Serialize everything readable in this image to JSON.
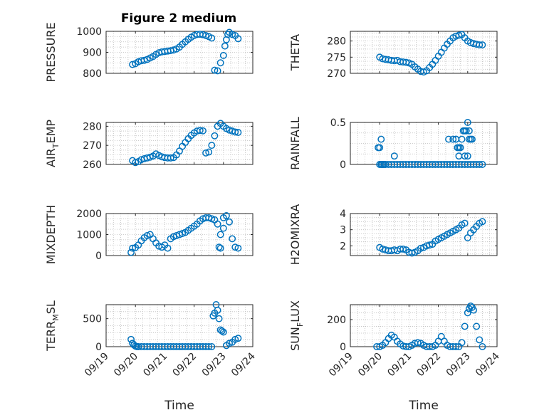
{
  "figure": {
    "title": "Figure 2 medium"
  },
  "colors": {
    "marker": "#0072BD",
    "axis": "#262626",
    "grid": "#bdbdbd"
  },
  "chart_data": [
    {
      "type": "scatter",
      "id": "pressure",
      "ylabel": "PRESSURE",
      "ylabel_sub": null,
      "ylim": [
        800,
        1000
      ],
      "yticks": [
        800,
        900,
        1000
      ],
      "yticklabels": [
        "800",
        "900",
        "1000"
      ],
      "xlim": [
        0,
        5
      ],
      "xticks": [
        0,
        1,
        2,
        3,
        4,
        5
      ],
      "xticklabels": [
        "09/19",
        "09/20",
        "09/21",
        "09/22",
        "09/23",
        "09/24"
      ],
      "xlabel": null,
      "x": [
        0.9,
        1.0,
        1.1,
        1.2,
        1.3,
        1.4,
        1.5,
        1.6,
        1.7,
        1.8,
        1.9,
        2.0,
        2.1,
        2.2,
        2.3,
        2.4,
        2.5,
        2.6,
        2.7,
        2.8,
        2.9,
        3.0,
        3.1,
        3.2,
        3.3,
        3.4,
        3.5,
        3.6,
        3.7,
        3.8,
        3.9,
        4.0,
        4.05,
        4.1,
        4.15,
        4.2,
        4.3,
        4.4,
        4.5
      ],
      "y": [
        842,
        846,
        855,
        860,
        862,
        866,
        873,
        880,
        890,
        898,
        902,
        904,
        906,
        908,
        911,
        916,
        925,
        938,
        950,
        962,
        972,
        980,
        985,
        986,
        984,
        980,
        975,
        968,
        815,
        812,
        850,
        885,
        930,
        960,
        985,
        995,
        985,
        980,
        965
      ]
    },
    {
      "type": "scatter",
      "id": "theta",
      "ylabel": "THETA",
      "ylabel_sub": null,
      "ylim": [
        270,
        283
      ],
      "yticks": [
        270,
        275,
        280
      ],
      "yticklabels": [
        "270",
        "275",
        "280"
      ],
      "xlim": [
        0,
        5
      ],
      "xticks": [
        0,
        1,
        2,
        3,
        4,
        5
      ],
      "xticklabels": [
        "09/19",
        "09/20",
        "09/21",
        "09/22",
        "09/23",
        "09/24"
      ],
      "xlabel": null,
      "x": [
        1.0,
        1.1,
        1.2,
        1.3,
        1.4,
        1.5,
        1.6,
        1.7,
        1.8,
        1.9,
        2.0,
        2.1,
        2.2,
        2.3,
        2.4,
        2.5,
        2.6,
        2.7,
        2.8,
        2.9,
        3.0,
        3.1,
        3.2,
        3.3,
        3.4,
        3.5,
        3.6,
        3.7,
        3.8,
        3.9,
        4.0,
        4.1,
        4.2,
        4.3,
        4.4,
        4.5
      ],
      "y": [
        275,
        274.5,
        274.3,
        274.2,
        274,
        273.9,
        274,
        273.6,
        273.5,
        273.4,
        273.2,
        272.8,
        272,
        271.3,
        270.6,
        270.4,
        270.8,
        271.8,
        272.8,
        274,
        275.3,
        276.5,
        277.8,
        279,
        280,
        281,
        281.5,
        281.8,
        282,
        281,
        280,
        279.5,
        279.2,
        279,
        278.8,
        278.8
      ]
    },
    {
      "type": "scatter",
      "id": "air_temp",
      "ylabel": "AIR",
      "ylabel_sub": "T",
      "ylabel_suffix": "EMP",
      "ylim": [
        260,
        282
      ],
      "yticks": [
        260,
        270,
        280
      ],
      "yticklabels": [
        "260",
        "270",
        "280"
      ],
      "xlim": [
        0,
        5
      ],
      "xticks": [
        0,
        1,
        2,
        3,
        4,
        5
      ],
      "xticklabels": [
        "09/19",
        "09/20",
        "09/21",
        "09/22",
        "09/23",
        "09/24"
      ],
      "xlabel": null,
      "x": [
        0.9,
        1.0,
        1.1,
        1.2,
        1.3,
        1.4,
        1.5,
        1.6,
        1.7,
        1.8,
        1.9,
        2.0,
        2.1,
        2.2,
        2.3,
        2.4,
        2.5,
        2.6,
        2.7,
        2.8,
        2.9,
        3.0,
        3.1,
        3.2,
        3.3,
        3.4,
        3.5,
        3.6,
        3.7,
        3.8,
        3.9,
        4.0,
        4.1,
        4.2,
        4.3,
        4.4,
        4.5
      ],
      "y": [
        262,
        261,
        261.5,
        262.5,
        263,
        263.4,
        263.8,
        264.4,
        265.5,
        264.7,
        264,
        263.6,
        263.4,
        263.4,
        263.6,
        265,
        267,
        269.5,
        271.5,
        273.5,
        275.2,
        276.5,
        277.5,
        277.8,
        277.6,
        266,
        266.5,
        270,
        275,
        280,
        281.5,
        280,
        278.8,
        278,
        277.5,
        277,
        276.8
      ]
    },
    {
      "type": "scatter",
      "id": "rainfall",
      "ylabel": "RAINFALL",
      "ylabel_sub": null,
      "ylim": [
        0,
        0.5
      ],
      "yticks": [
        0,
        0.5
      ],
      "yticklabels": [
        "0",
        "0.5"
      ],
      "xlim": [
        0,
        5
      ],
      "xticks": [
        0,
        1,
        2,
        3,
        4,
        5
      ],
      "xticklabels": [
        "09/19",
        "09/20",
        "09/21",
        "09/22",
        "09/23",
        "09/24"
      ],
      "xlabel": null,
      "x": [
        0.95,
        1.0,
        1.05,
        1.1,
        1.15,
        1.2,
        1.3,
        1.4,
        1.5,
        1.6,
        1.7,
        1.8,
        1.9,
        2.0,
        2.1,
        2.2,
        2.3,
        2.4,
        2.5,
        2.6,
        2.7,
        2.8,
        2.9,
        3.0,
        3.1,
        3.2,
        3.3,
        3.4,
        3.5,
        3.6,
        3.7,
        3.8,
        3.9,
        4.0,
        4.1,
        4.2,
        4.3,
        4.4,
        4.5,
        1.0,
        1.05,
        1.1,
        1.5,
        3.35,
        3.5,
        3.6,
        3.65,
        3.7,
        3.75,
        3.8,
        3.85,
        3.9,
        3.95,
        4.0,
        4.05,
        4.1,
        3.7,
        3.75,
        4.15,
        4.0,
        3.9,
        4.05,
        3.6
      ],
      "y": [
        0.2,
        0.2,
        0.3,
        0,
        0,
        0,
        0,
        0,
        0,
        0,
        0,
        0,
        0,
        0,
        0,
        0,
        0,
        0,
        0,
        0,
        0,
        0,
        0,
        0,
        0,
        0,
        0,
        0,
        0,
        0,
        0,
        0,
        0,
        0,
        0,
        0,
        0,
        0,
        0,
        0,
        0,
        0,
        0.1,
        0.3,
        0.3,
        0.3,
        0.2,
        0.2,
        0.2,
        0.3,
        0.4,
        0.4,
        0.4,
        0.5,
        0.3,
        0.3,
        0.1,
        0.2,
        0.3,
        0.1,
        0.1,
        0.4,
        0.3
      ]
    },
    {
      "type": "scatter",
      "id": "mixdepth",
      "ylabel": "MIXDEPTH",
      "ylabel_sub": null,
      "ylim": [
        0,
        2000
      ],
      "yticks": [
        0,
        1000,
        2000
      ],
      "yticklabels": [
        "0",
        "1000",
        "2000"
      ],
      "xlim": [
        0,
        5
      ],
      "xticks": [
        0,
        1,
        2,
        3,
        4,
        5
      ],
      "xticklabels": [
        "09/19",
        "09/20",
        "09/21",
        "09/22",
        "09/23",
        "09/24"
      ],
      "xlabel": null,
      "x": [
        0.85,
        0.9,
        1.0,
        1.1,
        1.2,
        1.3,
        1.4,
        1.5,
        1.6,
        1.7,
        1.8,
        1.9,
        2.0,
        2.1,
        2.2,
        2.3,
        2.4,
        2.5,
        2.6,
        2.7,
        2.8,
        2.9,
        3.0,
        3.1,
        3.2,
        3.3,
        3.4,
        3.5,
        3.6,
        3.7,
        3.8,
        3.9,
        4.0,
        4.1,
        4.2,
        4.3,
        4.4,
        4.5,
        3.85,
        3.9,
        4.0
      ],
      "y": [
        150,
        350,
        380,
        500,
        700,
        850,
        950,
        1000,
        800,
        600,
        450,
        400,
        500,
        350,
        800,
        900,
        950,
        1000,
        1050,
        1100,
        1200,
        1300,
        1400,
        1500,
        1650,
        1750,
        1800,
        1800,
        1750,
        1700,
        1500,
        1000,
        1800,
        1900,
        1600,
        800,
        400,
        350,
        400,
        350,
        1300
      ]
    },
    {
      "type": "scatter",
      "id": "h2omixra",
      "ylabel": "H2OMIXRA",
      "ylabel_sub": null,
      "ylim": [
        1.4,
        4
      ],
      "yticks": [
        2,
        3,
        4
      ],
      "yticklabels": [
        "2",
        "3",
        "4"
      ],
      "xlim": [
        0,
        5
      ],
      "xticks": [
        0,
        1,
        2,
        3,
        4,
        5
      ],
      "xticklabels": [
        "09/19",
        "09/20",
        "09/21",
        "09/22",
        "09/23",
        "09/24"
      ],
      "xlabel": null,
      "x": [
        1.0,
        1.1,
        1.2,
        1.3,
        1.4,
        1.5,
        1.6,
        1.7,
        1.8,
        1.9,
        2.0,
        2.1,
        2.2,
        2.3,
        2.4,
        2.5,
        2.6,
        2.7,
        2.8,
        2.9,
        3.0,
        3.1,
        3.2,
        3.3,
        3.4,
        3.5,
        3.6,
        3.7,
        3.8,
        3.9,
        4.0,
        4.1,
        4.2,
        4.3,
        4.4,
        4.5
      ],
      "y": [
        1.9,
        1.8,
        1.75,
        1.7,
        1.7,
        1.75,
        1.7,
        1.8,
        1.8,
        1.75,
        1.6,
        1.55,
        1.6,
        1.7,
        1.85,
        1.9,
        2.0,
        2.05,
        2.1,
        2.3,
        2.4,
        2.5,
        2.6,
        2.7,
        2.8,
        2.9,
        3.0,
        3.1,
        3.3,
        3.4,
        2.5,
        2.8,
        3.0,
        3.2,
        3.4,
        3.5
      ]
    },
    {
      "type": "scatter",
      "id": "terr_msl",
      "ylabel": "TERR",
      "ylabel_sub": "M",
      "ylabel_suffix": "SL",
      "ylim": [
        0,
        750
      ],
      "yticks": [
        0,
        500
      ],
      "yticklabels": [
        "0",
        "500"
      ],
      "xlim": [
        0,
        5
      ],
      "xticks": [
        0,
        1,
        2,
        3,
        4,
        5
      ],
      "xticklabels": [
        "09/19",
        "09/20",
        "09/21",
        "09/22",
        "09/23",
        "09/24"
      ],
      "xlabel": "Time",
      "x": [
        0.85,
        0.9,
        0.95,
        1.0,
        1.05,
        1.1,
        1.2,
        1.3,
        1.4,
        1.5,
        1.6,
        1.7,
        1.8,
        1.9,
        2.0,
        2.1,
        2.2,
        2.3,
        2.4,
        2.5,
        2.6,
        2.7,
        2.8,
        2.9,
        3.0,
        3.1,
        3.2,
        3.3,
        3.4,
        3.5,
        3.6,
        3.65,
        3.7,
        3.75,
        3.8,
        3.85,
        3.9,
        3.95,
        4.0,
        4.1,
        4.2,
        4.3,
        4.4,
        4.5
      ],
      "y": [
        130,
        60,
        30,
        10,
        0,
        0,
        0,
        0,
        0,
        0,
        0,
        0,
        0,
        0,
        0,
        0,
        0,
        0,
        0,
        0,
        0,
        0,
        0,
        0,
        0,
        0,
        0,
        0,
        0,
        0,
        0,
        550,
        600,
        750,
        650,
        500,
        300,
        280,
        260,
        20,
        60,
        80,
        130,
        150
      ]
    },
    {
      "type": "scatter",
      "id": "sun_flux",
      "ylabel": "SUN",
      "ylabel_sub": "F",
      "ylabel_suffix": "LUX",
      "ylim": [
        0,
        310
      ],
      "yticks": [
        0,
        200
      ],
      "yticklabels": [
        "0",
        "200"
      ],
      "xlim": [
        0,
        5
      ],
      "xticks": [
        0,
        1,
        2,
        3,
        4,
        5
      ],
      "xticklabels": [
        "09/19",
        "09/20",
        "09/21",
        "09/22",
        "09/23",
        "09/24"
      ],
      "xlabel": "Time",
      "x": [
        0.9,
        1.0,
        1.1,
        1.2,
        1.3,
        1.4,
        1.5,
        1.6,
        1.7,
        1.8,
        1.9,
        2.0,
        2.1,
        2.2,
        2.3,
        2.4,
        2.5,
        2.6,
        2.7,
        2.8,
        2.9,
        3.0,
        3.1,
        3.2,
        3.3,
        3.4,
        3.5,
        3.6,
        3.7,
        3.8,
        3.9,
        4.0,
        4.05,
        4.1,
        4.15,
        4.2,
        4.3,
        4.4,
        4.5
      ],
      "y": [
        0,
        0,
        10,
        30,
        60,
        85,
        70,
        40,
        20,
        5,
        0,
        0,
        10,
        25,
        30,
        25,
        10,
        0,
        0,
        0,
        10,
        40,
        75,
        40,
        10,
        0,
        0,
        0,
        0,
        30,
        150,
        250,
        280,
        300,
        290,
        270,
        150,
        50,
        0
      ]
    }
  ]
}
